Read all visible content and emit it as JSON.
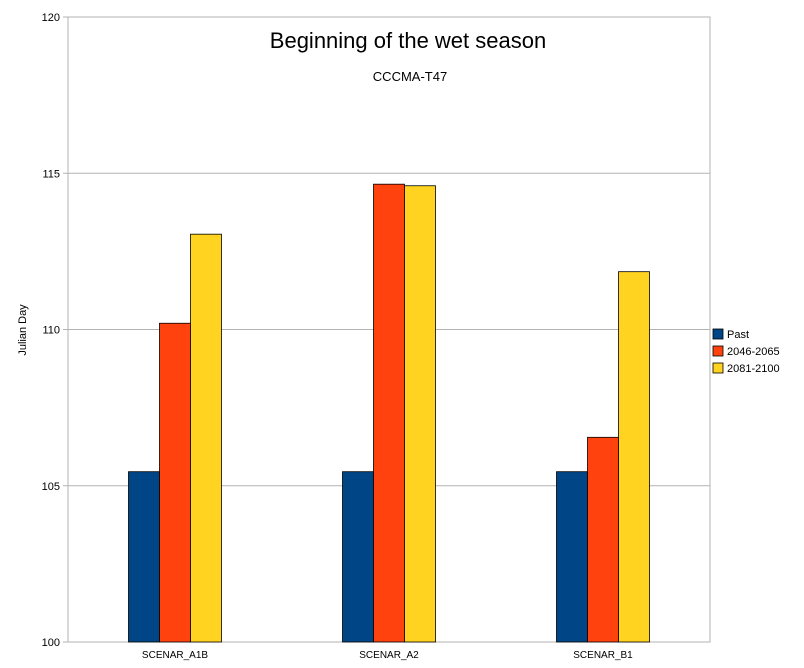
{
  "chart_data": {
    "type": "bar",
    "title": "Beginning of the wet season",
    "subtitle": "CCCMA-T47",
    "xlabel": "",
    "ylabel": "Julian Day",
    "ylim": [
      100,
      120
    ],
    "yticks": [
      100,
      105,
      110,
      115,
      120
    ],
    "grid": true,
    "legend_position": "right",
    "categories": [
      "SCENAR_A1B",
      "SCENAR_A2",
      "SCENAR_B1"
    ],
    "series": [
      {
        "name": "Past",
        "color": "#004586",
        "values": [
          105.45,
          105.45,
          105.45
        ]
      },
      {
        "name": "2046-2065",
        "color": "#ff420e",
        "values": [
          110.2,
          114.65,
          106.55
        ]
      },
      {
        "name": "2081-2100",
        "color": "#ffd320",
        "values": [
          113.05,
          114.6,
          111.85
        ]
      }
    ]
  }
}
